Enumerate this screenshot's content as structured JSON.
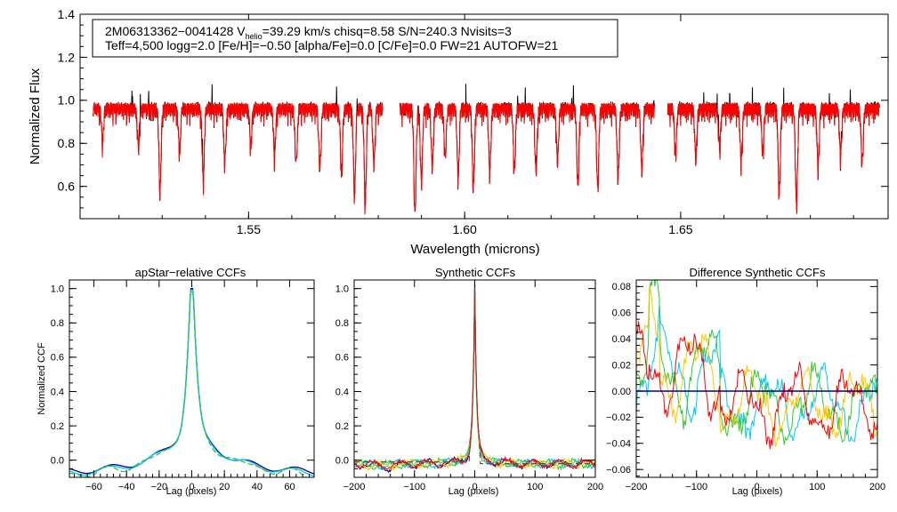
{
  "chart_data": [
    {
      "id": "spectrum",
      "type": "line",
      "title": "",
      "xlabel": "Wavelength (microns)",
      "ylabel": "Normalized Flux",
      "xlim": [
        1.511,
        1.698
      ],
      "ylim": [
        0.45,
        1.4
      ],
      "xticks": [
        1.55,
        1.6,
        1.65
      ],
      "xtick_labels": [
        "1.55",
        "1.60",
        "1.65"
      ],
      "yticks": [
        0.6,
        0.8,
        1.0,
        1.2,
        1.4
      ],
      "ytick_labels": [
        "0.6",
        "0.8",
        "1.0",
        "1.2",
        "1.4"
      ],
      "info_line1_parts": [
        "2M06313362−0041428  V",
        "helio",
        "=39.29 km/s  chisq=8.58  S/N=240.3  Nvisits=3"
      ],
      "info_line2": "Teff=4,500 logg=2.0 [Fe/H]=−0.50 [alpha/Fe]=0.0 [C/Fe]=0.0 FW=21 AUTOFW=21",
      "chips": [
        [
          1.514,
          1.581
        ],
        [
          1.585,
          1.644
        ],
        [
          1.647,
          1.696
        ]
      ],
      "lines": [
        {
          "x": 1.5162,
          "d": 0.15
        },
        {
          "x": 1.5245,
          "d": 0.18
        },
        {
          "x": 1.5295,
          "d": 0.38
        },
        {
          "x": 1.534,
          "d": 0.2
        },
        {
          "x": 1.5395,
          "d": 0.33
        },
        {
          "x": 1.5445,
          "d": 0.25
        },
        {
          "x": 1.5505,
          "d": 0.17
        },
        {
          "x": 1.556,
          "d": 0.22
        },
        {
          "x": 1.561,
          "d": 0.26
        },
        {
          "x": 1.5665,
          "d": 0.28
        },
        {
          "x": 1.5715,
          "d": 0.3
        },
        {
          "x": 1.5745,
          "d": 0.4
        },
        {
          "x": 1.577,
          "d": 0.44
        },
        {
          "x": 1.579,
          "d": 0.26
        },
        {
          "x": 1.5885,
          "d": 0.5
        },
        {
          "x": 1.59,
          "d": 0.35
        },
        {
          "x": 1.5925,
          "d": 0.27
        },
        {
          "x": 1.5955,
          "d": 0.23
        },
        {
          "x": 1.5985,
          "d": 0.3
        },
        {
          "x": 1.602,
          "d": 0.36
        },
        {
          "x": 1.6058,
          "d": 0.28
        },
        {
          "x": 1.6115,
          "d": 0.27
        },
        {
          "x": 1.6165,
          "d": 0.3
        },
        {
          "x": 1.6215,
          "d": 0.25
        },
        {
          "x": 1.6262,
          "d": 0.35
        },
        {
          "x": 1.6308,
          "d": 0.37
        },
        {
          "x": 1.6355,
          "d": 0.32
        },
        {
          "x": 1.641,
          "d": 0.28
        },
        {
          "x": 1.6488,
          "d": 0.2
        },
        {
          "x": 1.6535,
          "d": 0.23
        },
        {
          "x": 1.659,
          "d": 0.18
        },
        {
          "x": 1.664,
          "d": 0.25
        },
        {
          "x": 1.669,
          "d": 0.2
        },
        {
          "x": 1.6728,
          "d": 0.4
        },
        {
          "x": 1.6768,
          "d": 0.45
        },
        {
          "x": 1.6818,
          "d": 0.27
        },
        {
          "x": 1.687,
          "d": 0.22
        },
        {
          "x": 1.692,
          "d": 0.25
        }
      ],
      "series": [
        {
          "name": "observed",
          "color": "#000000"
        },
        {
          "name": "model",
          "color": "#ff0000"
        }
      ]
    },
    {
      "id": "ccf_apstar",
      "type": "line",
      "title": "apStar−relative CCFs",
      "xlabel": "Lag (pixels)",
      "ylabel": "Normalized CCF",
      "xlim": [
        -75,
        75
      ],
      "ylim": [
        -0.1,
        1.05
      ],
      "xticks": [
        -60,
        -40,
        -20,
        0,
        20,
        40,
        60
      ],
      "xtick_labels": [
        "−60",
        "−40",
        "−20",
        "0",
        "20",
        "40",
        "60"
      ],
      "yticks": [
        0.0,
        0.2,
        0.4,
        0.6,
        0.8,
        1.0
      ],
      "ytick_labels": [
        "0.0",
        "0.2",
        "0.4",
        "0.6",
        "0.8",
        "1.0"
      ],
      "series": [
        {
          "name": "visit 1",
          "color": "#00008b"
        },
        {
          "name": "visit 2",
          "color": "#00c8ff"
        },
        {
          "name": "visit 3",
          "color": "#32c832"
        }
      ]
    },
    {
      "id": "ccf_synth",
      "type": "line",
      "title": "Synthetic CCFs",
      "xlabel": "Lag (pixels)",
      "ylabel": "",
      "xlim": [
        -200,
        200
      ],
      "ylim": [
        -0.1,
        1.05
      ],
      "xticks": [
        -200,
        -100,
        0,
        100,
        200
      ],
      "xtick_labels": [
        "−200",
        "−100",
        "0",
        "100",
        "200"
      ],
      "yticks": [
        0.0,
        0.2,
        0.4,
        0.6,
        0.8,
        1.0
      ],
      "ytick_labels": [
        "0.0",
        "0.2",
        "0.4",
        "0.6",
        "0.8",
        "1.0"
      ],
      "series": [
        {
          "name": "visit 1",
          "color": "#00008b"
        },
        {
          "name": "visit 2",
          "color": "#00c8ff"
        },
        {
          "name": "visit 3",
          "color": "#32c832"
        },
        {
          "name": "visit 4",
          "color": "#ffc800"
        },
        {
          "name": "visit 5",
          "color": "#ff0000"
        },
        {
          "name": "combined",
          "color": "#555555"
        }
      ]
    },
    {
      "id": "ccf_diff",
      "type": "line",
      "title": "Difference Synthetic CCFs",
      "xlabel": "Lag (pixels)",
      "ylabel": "",
      "xlim": [
        -200,
        200
      ],
      "ylim": [
        -0.066,
        0.085
      ],
      "xticks": [
        -200,
        -100,
        0,
        100,
        200
      ],
      "xtick_labels": [
        "−200",
        "−100",
        "0",
        "100",
        "200"
      ],
      "yticks": [
        -0.06,
        -0.04,
        -0.02,
        0.0,
        0.02,
        0.04,
        0.06,
        0.08
      ],
      "ytick_labels": [
        "−0.06",
        "−0.04",
        "−0.02",
        "0.00",
        "0.02",
        "0.04",
        "0.06",
        "0.08"
      ],
      "series": [
        {
          "name": "visit 1",
          "color": "#00c8ff"
        },
        {
          "name": "visit 2",
          "color": "#32c832"
        },
        {
          "name": "visit 3",
          "color": "#ffc800"
        },
        {
          "name": "visit 4",
          "color": "#ff0000"
        },
        {
          "name": "zero line",
          "color": "#00008b"
        }
      ]
    }
  ]
}
